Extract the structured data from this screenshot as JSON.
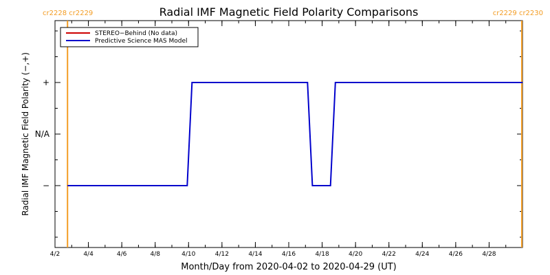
{
  "chart_data": {
    "type": "line",
    "title": "Radial IMF Magnetic Field Polarity Comparisons",
    "xlabel": "Month/Day from 2020-04-02 to 2020-04-29 (UT)",
    "ylabel": "Radial IMF Magnetic Field Polarity (−,+)",
    "xlim": [
      "2020-04-02",
      "2020-04-30"
    ],
    "x_tick_labels": [
      "4/2",
      "4/4",
      "4/6",
      "4/8",
      "4/10",
      "4/12",
      "4/14",
      "4/16",
      "4/18",
      "4/20",
      "4/22",
      "4/24",
      "4/26",
      "4/28"
    ],
    "x_tick_dates": [
      "2020-04-02",
      "2020-04-04",
      "2020-04-06",
      "2020-04-08",
      "2020-04-10",
      "2020-04-12",
      "2020-04-14",
      "2020-04-16",
      "2020-04-18",
      "2020-04-20",
      "2020-04-22",
      "2020-04-24",
      "2020-04-26",
      "2020-04-28"
    ],
    "y_categories": [
      "−",
      "N/A",
      "+"
    ],
    "carrington_markers": [
      {
        "date": "2020-04-02T18:00",
        "label": "cr2228 cr2229",
        "side": "left",
        "color": "#f39c22"
      },
      {
        "date": "2020-04-29T23:00",
        "label": "cr2229 cr2230",
        "side": "right",
        "color": "#f39c22"
      }
    ],
    "legend": {
      "position": "top-left"
    },
    "series": [
      {
        "name": "STEREO−Behind (No data)",
        "color": "#cc0000",
        "points": []
      },
      {
        "name": "Predictive Science MAS Model",
        "color": "#0000cc",
        "points": [
          {
            "x": "2020-04-02T18:00",
            "y": "−"
          },
          {
            "x": "2020-04-09T22:00",
            "y": "−"
          },
          {
            "x": "2020-04-10T05:00",
            "y": "+"
          },
          {
            "x": "2020-04-17T03:00",
            "y": "+"
          },
          {
            "x": "2020-04-17T10:00",
            "y": "−"
          },
          {
            "x": "2020-04-18T12:00",
            "y": "−"
          },
          {
            "x": "2020-04-18T19:00",
            "y": "+"
          },
          {
            "x": "2020-04-30T00:00",
            "y": "+"
          }
        ]
      }
    ]
  }
}
